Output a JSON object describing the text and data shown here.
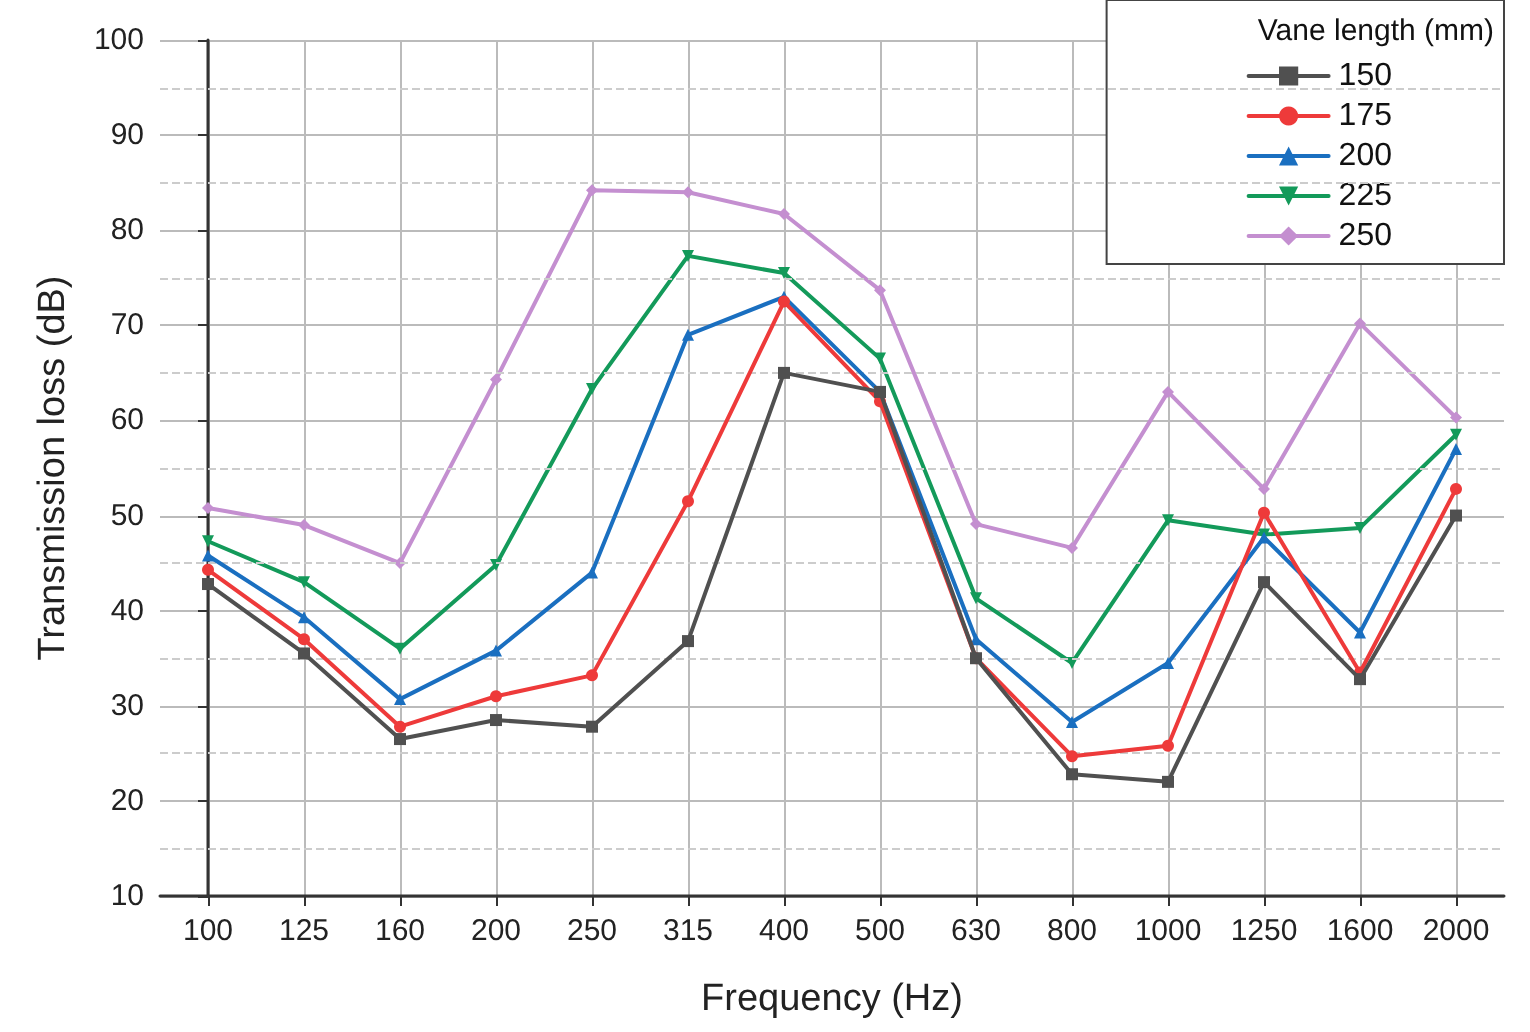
{
  "chart_data": {
    "type": "line",
    "xlabel": "Frequency (Hz)",
    "ylabel": "Transmission loss (dB)",
    "legend_title": "Vane length (mm)",
    "categories": [
      "100",
      "125",
      "160",
      "200",
      "250",
      "315",
      "400",
      "500",
      "630",
      "800",
      "1000",
      "1250",
      "1600",
      "2000"
    ],
    "ylim": [
      10,
      100
    ],
    "yticks": [
      10,
      20,
      30,
      40,
      50,
      60,
      70,
      80,
      90,
      100
    ],
    "grid": true,
    "legend": "top right",
    "line_style": "solid",
    "series": [
      {
        "name": "150",
        "color": "#505050",
        "marker": "square",
        "values": [
          42.8,
          35.5,
          26.5,
          28.5,
          27.8,
          36.8,
          65,
          63,
          35,
          22.8,
          22,
          43,
          32.8,
          50
        ]
      },
      {
        "name": "175",
        "color": "#ee3a3a",
        "marker": "circle",
        "values": [
          44.3,
          37,
          27.8,
          31,
          33.2,
          51.5,
          72.5,
          62,
          35,
          24.7,
          25.8,
          50.3,
          33.5,
          52.8
        ]
      },
      {
        "name": "200",
        "color": "#1a6fc0",
        "marker": "triangle",
        "values": [
          45.8,
          39.3,
          30.7,
          35.8,
          44,
          69,
          73,
          63,
          37,
          28.3,
          34.5,
          47.7,
          37.7,
          57
        ]
      },
      {
        "name": "225",
        "color": "#139a5a",
        "marker": "triangle-down",
        "values": [
          47.3,
          43,
          36,
          44.8,
          63.3,
          77.3,
          75.5,
          66.5,
          41.3,
          34.5,
          49.5,
          48,
          48.7,
          58.5
        ]
      },
      {
        "name": "250",
        "color": "#c48fd0",
        "marker": "diamond",
        "values": [
          50.8,
          49,
          45,
          64.3,
          84.2,
          84,
          81.7,
          73.7,
          49.1,
          46.6,
          63,
          52.8,
          70.2,
          60.3
        ]
      }
    ]
  }
}
